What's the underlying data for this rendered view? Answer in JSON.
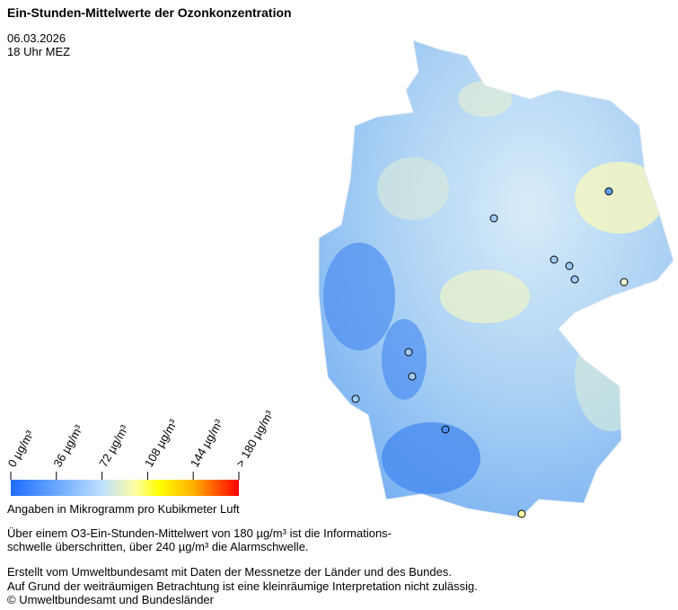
{
  "header": {
    "title": "Ein-Stunden-Mittelwerte der Ozonkonzentration",
    "date": "06.03.2026",
    "time": "18 Uhr MEZ"
  },
  "legend": {
    "ticks": [
      "0  µg/m³",
      "36  µg/m³",
      "72  µg/m³",
      "108  µg/m³",
      "144  µg/m³",
      "> 180  µg/m³"
    ],
    "caption": "Angaben in Mikrogramm pro Kubikmeter Luft"
  },
  "notes": {
    "threshold": [
      "Über einem O3-Ein-Stunden-Mittelwert von 180 µg/m³ ist die Informations-",
      "schwelle überschritten, über 240 µg/m³ die Alarmschwelle."
    ],
    "credits": [
      "Erstellt vom Umweltbundesamt mit Daten der Messnetze der Länder und des Bundes.",
      "Auf Grund der weiträumigen Betrachtung ist eine kleinräumige Interpretation nicht zulässig.",
      "© Umweltbundesamt und Bundesländer"
    ]
  }
}
